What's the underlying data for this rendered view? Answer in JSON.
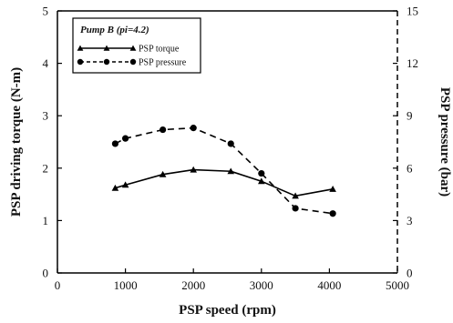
{
  "chart_data": {
    "type": "line",
    "xlabel": "PSP speed (rpm)",
    "ylabel": "PSP driving  torque (N-m)",
    "ylabel_right": "PSP pressure (bar)",
    "xlim": [
      0,
      5000
    ],
    "ylim": [
      0,
      5
    ],
    "ylim_right": [
      0,
      15
    ],
    "xticks": [
      "0",
      "1000",
      "2000",
      "3000",
      "4000",
      "5000"
    ],
    "yticks": [
      "0",
      "1",
      "2",
      "3",
      "4",
      "5"
    ],
    "yticks_right": [
      "0",
      "3",
      "6",
      "9",
      "12",
      "15"
    ],
    "grid": false,
    "legend": {
      "title": "Pump B (pi=4.2)",
      "placement": "top-left"
    },
    "series": [
      {
        "name": "PSP torque",
        "axis": "left",
        "style": "solid",
        "marker": "triangle",
        "color": "#000000",
        "x": [
          850,
          1000,
          1550,
          2000,
          2550,
          3000,
          3500,
          4050
        ],
        "y": [
          1.62,
          1.68,
          1.88,
          1.97,
          1.94,
          1.75,
          1.47,
          1.6
        ]
      },
      {
        "name": "PSP pressure",
        "axis": "right",
        "style": "dashed",
        "marker": "circle",
        "color": "#000000",
        "x": [
          850,
          1000,
          1550,
          2000,
          2550,
          3000,
          3500,
          4050
        ],
        "y": [
          7.4,
          7.7,
          8.2,
          8.3,
          7.4,
          5.7,
          3.7,
          3.4
        ]
      }
    ]
  }
}
